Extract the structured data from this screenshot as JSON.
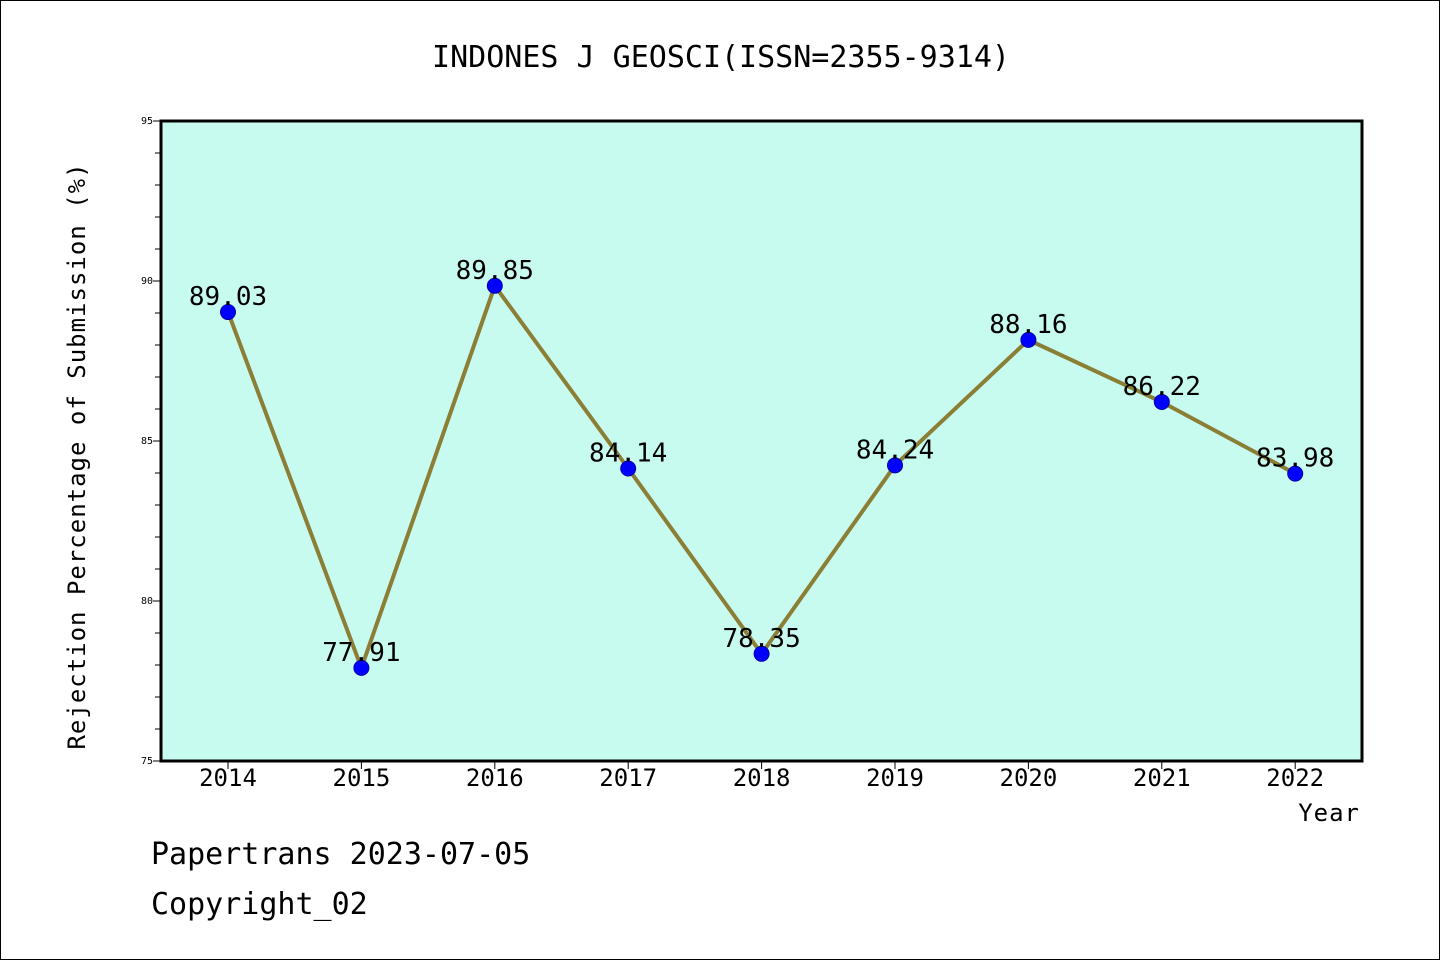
{
  "chart_data": {
    "type": "line",
    "title": "INDONES J GEOSCI(ISSN=2355-9314)",
    "xlabel": "Year",
    "ylabel": "Rejection Percentage of Submission (%)",
    "categories": [
      "2014",
      "2015",
      "2016",
      "2017",
      "2018",
      "2019",
      "2020",
      "2021",
      "2022"
    ],
    "values": [
      89.03,
      77.91,
      89.85,
      84.14,
      78.35,
      84.24,
      88.16,
      86.22,
      83.98
    ],
    "data_labels": [
      "89.03",
      "77.91",
      "89.85",
      "84.14",
      "78.35",
      "84.24",
      "88.16",
      "86.22",
      "83.98"
    ],
    "ylim": [
      75,
      95
    ],
    "yticks": [
      75,
      80,
      85,
      90,
      95
    ],
    "ytick_labels": [
      "75",
      "80",
      "85",
      "90",
      "95"
    ],
    "grid": false,
    "colors": {
      "plot_background": "#c8fbef",
      "line": "#8b7e35",
      "marker": "#0000ff"
    }
  },
  "footer": {
    "line1": "Papertrans 2023-07-05",
    "line2": "Copyright_02"
  }
}
